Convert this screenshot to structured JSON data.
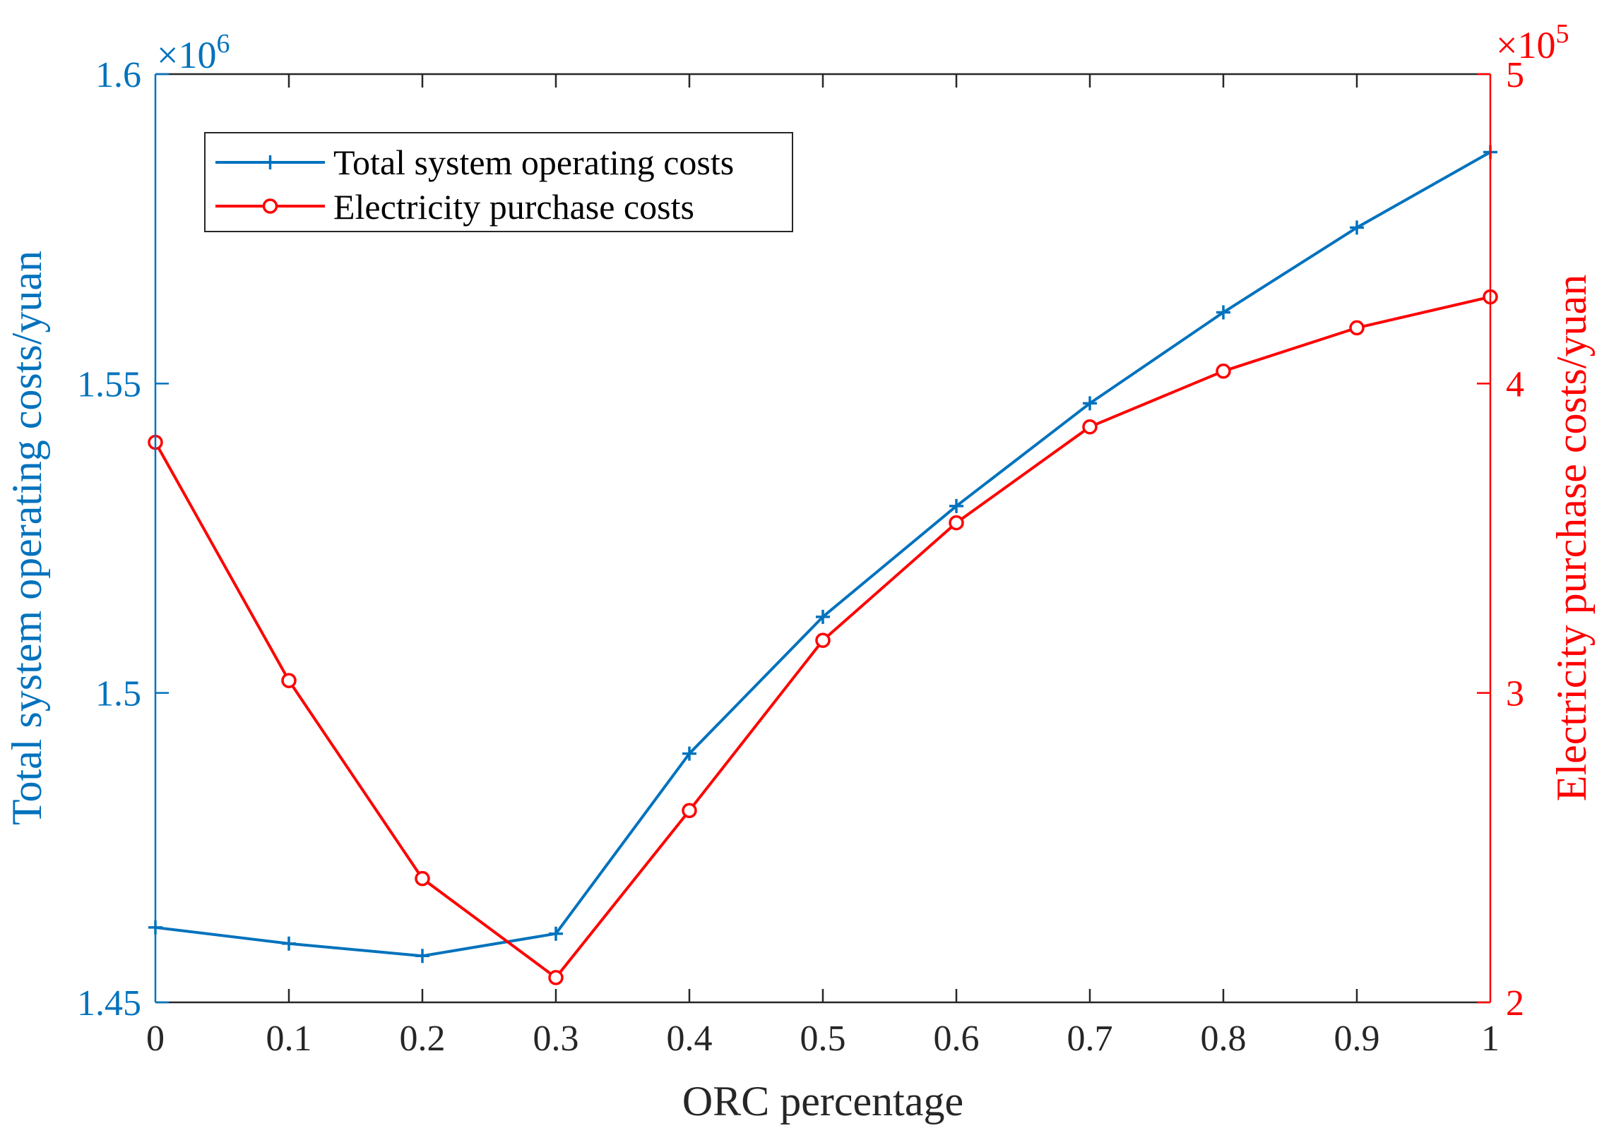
{
  "chart_data": {
    "type": "line",
    "x": [
      0,
      0.1,
      0.2,
      0.3,
      0.4,
      0.5,
      0.6,
      0.7,
      0.8,
      0.9,
      1
    ],
    "xlabel": "ORC percentage",
    "xlim": [
      0,
      1
    ],
    "x_tick_labels": [
      "0",
      "0.1",
      "0.2",
      "0.3",
      "0.4",
      "0.5",
      "0.6",
      "0.7",
      "0.8",
      "0.9",
      "1"
    ],
    "y_left": {
      "label": "Total system operating costs/yuan",
      "multiplier": "×10",
      "exponent": "6",
      "lim": [
        1.45,
        1.6
      ],
      "ticks": [
        1.45,
        1.5,
        1.55,
        1.6
      ],
      "tick_labels": [
        "1.45",
        "1.5",
        "1.55",
        "1.6"
      ],
      "color": "#0072BD"
    },
    "y_right": {
      "label": "Electricity purchase costs/yuan",
      "multiplier": "×10",
      "exponent": "5",
      "lim": [
        2,
        5
      ],
      "ticks": [
        2,
        3,
        4,
        5
      ],
      "tick_labels": [
        "2",
        "3",
        "4",
        "5"
      ],
      "color": "#FF0000"
    },
    "series": [
      {
        "name": "Total system operating costs",
        "axis": "left",
        "marker": "plus",
        "color": "#0072BD",
        "values": [
          1.4621,
          1.4595,
          1.4575,
          1.4611,
          1.4902,
          1.5123,
          1.5302,
          1.5468,
          1.5615,
          1.5752,
          1.5874
        ]
      },
      {
        "name": "Electricity purchase costs",
        "axis": "right",
        "marker": "circle",
        "color": "#FF0000",
        "values": [
          3.81,
          3.04,
          2.4,
          2.08,
          2.62,
          3.17,
          3.55,
          3.86,
          4.04,
          4.18,
          4.28
        ]
      }
    ],
    "legend_position": "top-left"
  }
}
